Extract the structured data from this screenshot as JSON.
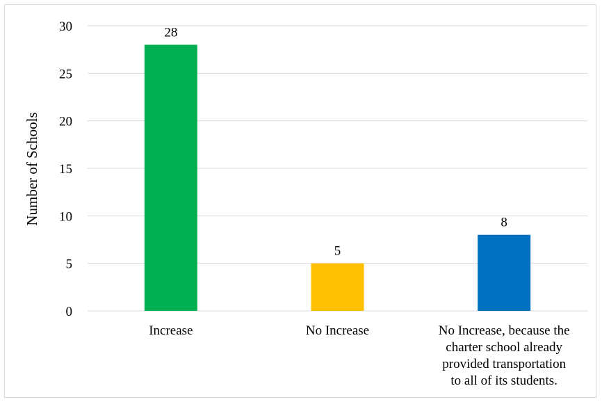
{
  "chart_data": {
    "type": "bar",
    "title": "",
    "xlabel": "",
    "ylabel": "Number of Schools",
    "ylim": [
      0,
      30
    ],
    "yticks": [
      0,
      5,
      10,
      15,
      20,
      25,
      30
    ],
    "grid": true,
    "legend": "none",
    "categories": [
      "Increase",
      "No Increase",
      "No Increase, because the charter school already provided transportation to all of its students."
    ],
    "category_lines": [
      [
        "Increase"
      ],
      [
        "No Increase"
      ],
      [
        "No Increase, because the",
        "charter school already",
        "provided transportation",
        "to all of its students."
      ]
    ],
    "values": [
      28,
      5,
      8
    ],
    "colors": [
      "#00b050",
      "#ffc000",
      "#0070c0"
    ],
    "data_labels": [
      "28",
      "5",
      "8"
    ]
  }
}
